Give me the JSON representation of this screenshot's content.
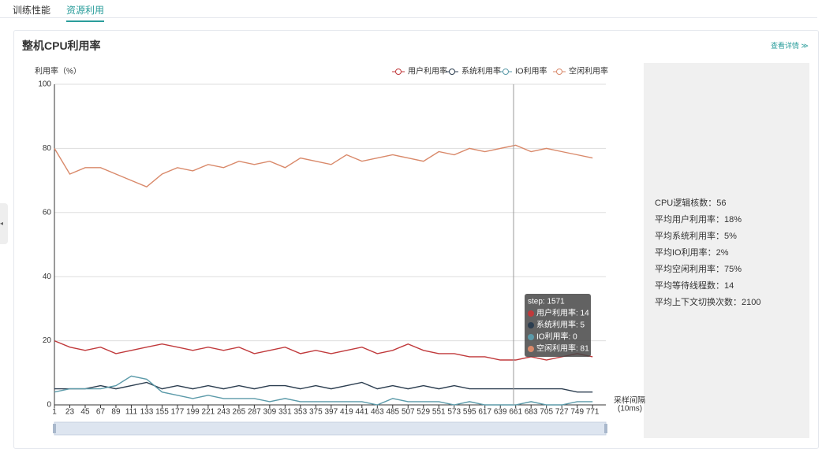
{
  "tabs": [
    "训练性能",
    "资源利用"
  ],
  "card_title": "整机CPU利用率",
  "detail_link": "查看详情 ≫",
  "stats": [
    "CPU逻辑核数：56",
    "平均用户利用率：18%",
    "平均系统利用率：5%",
    "平均IO利用率：2%",
    "平均空闲利用率：75%",
    "平均等待线程数：14",
    "平均上下文切换次数：2100"
  ],
  "tooltip": [
    "step: 1571",
    "用户利用率: 14",
    "系统利用率: 5",
    "IO利用率: 0",
    "空闲利用率: 81"
  ],
  "chart_data": {
    "type": "line",
    "y_label": "利用率（%）",
    "x_label": "采样间隔",
    "x_unit": "(10ms)",
    "x": [
      1,
      23,
      45,
      67,
      89,
      111,
      133,
      155,
      177,
      199,
      221,
      243,
      265,
      287,
      309,
      331,
      353,
      375,
      397,
      419,
      441,
      463,
      485,
      507,
      529,
      551,
      573,
      595,
      617,
      639,
      661,
      683,
      705,
      727,
      749,
      771
    ],
    "xlim": [
      1,
      790
    ],
    "xticks": [
      1,
      23,
      45,
      67,
      89,
      111,
      133,
      155,
      177,
      199,
      221,
      243,
      265,
      287,
      309,
      331,
      353,
      375,
      397,
      419,
      441,
      463,
      485,
      507,
      529,
      551,
      573,
      595,
      617,
      639,
      661,
      683,
      705,
      727,
      749,
      771
    ],
    "ylim": [
      0,
      100
    ],
    "yticks": [
      0,
      20,
      40,
      60,
      80,
      100
    ],
    "grid": true,
    "series": [
      {
        "name": "用户利用率",
        "color": "#c0393b",
        "values": [
          20,
          18,
          17,
          18,
          16,
          17,
          18,
          19,
          18,
          17,
          18,
          17,
          18,
          16,
          17,
          18,
          16,
          17,
          16,
          17,
          18,
          16,
          17,
          19,
          17,
          16,
          16,
          15,
          15,
          14,
          14,
          15,
          14,
          15,
          16,
          15
        ]
      },
      {
        "name": "系统利用率",
        "color": "#2c3e50",
        "values": [
          5,
          5,
          5,
          6,
          5,
          6,
          7,
          5,
          6,
          5,
          6,
          5,
          6,
          5,
          6,
          6,
          5,
          6,
          5,
          6,
          7,
          5,
          6,
          5,
          6,
          5,
          6,
          5,
          5,
          5,
          5,
          5,
          5,
          5,
          4,
          4
        ]
      },
      {
        "name": "IO利用率",
        "color": "#5b9aa9",
        "values": [
          4,
          5,
          5,
          5,
          6,
          9,
          8,
          4,
          3,
          2,
          3,
          2,
          2,
          2,
          1,
          2,
          1,
          1,
          1,
          1,
          1,
          0,
          2,
          1,
          1,
          1,
          0,
          1,
          0,
          0,
          0,
          1,
          0,
          0,
          1,
          1
        ]
      },
      {
        "name": "空闲利用率",
        "color": "#d9896a",
        "values": [
          80,
          72,
          74,
          74,
          72,
          70,
          68,
          72,
          74,
          73,
          75,
          74,
          76,
          75,
          76,
          74,
          77,
          76,
          75,
          78,
          76,
          77,
          78,
          77,
          76,
          79,
          78,
          80,
          79,
          80,
          81,
          79,
          80,
          79,
          78,
          77
        ]
      }
    ]
  }
}
